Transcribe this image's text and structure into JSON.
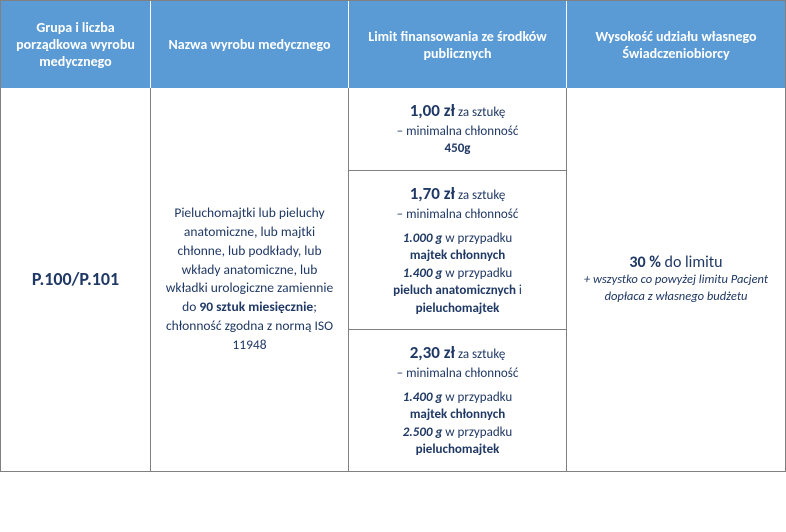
{
  "colors": {
    "header_bg": "#5b9bd5",
    "header_text": "#ffffff",
    "body_text": "#1f3864",
    "border": "#808080"
  },
  "header": {
    "col1": "Grupa i liczba porządkowa wyrobu medycznego",
    "col2": "Nazwa wyrobu medycznego",
    "col3": "Limit finansowania ze środków publicznych",
    "col4": "Wysokość udziału własnego Świadczeniobiorcy"
  },
  "row": {
    "code": "P.100/P.101",
    "desc_pre": "Pieluchomajtki lub pieluchy anatomiczne, lub majtki chłonne, lub podkłady, lub wkłady anatomiczne, lub wkładki urologiczne zamiennie do ",
    "desc_bold": "90 sztuk miesięcznie",
    "desc_post": "; chłonność zgodna z normą ISO 11948",
    "limits": [
      {
        "price": "1,00 zł",
        "price_suffix": " za sztukę",
        "line2_pre": "– minimalna chłonność",
        "line2_bold": "450g"
      },
      {
        "price": "1,70 zł",
        "price_suffix": " za sztukę",
        "line2_pre": "– minimalna chłonność",
        "d1_val": "1.000 g",
        "d1_txt": " w przypadku ",
        "d1_bold": "majtek chłonnych",
        "d2_val": "1.400 g",
        "d2_txt": " w przypadku ",
        "d2_bold1": "pieluch anatomicznych",
        "d2_mid": " i ",
        "d2_bold2": "pieluchomajtek"
      },
      {
        "price": "2,30 zł",
        "price_suffix": " za sztukę",
        "line2_pre": "– minimalna chłonność",
        "d1_val": "1.400 g",
        "d1_txt": " w przypadku ",
        "d1_bold": "majtek chłonnych",
        "d2_val": "2.500 g",
        "d2_txt": " w przypadku ",
        "d2_bold": "pieluchomajtek"
      }
    ],
    "share_percent": "30 %",
    "share_suffix": " do limitu",
    "share_note": "+ wszystko co powyżej limitu Pacjent dopłaca z własnego budżetu"
  }
}
